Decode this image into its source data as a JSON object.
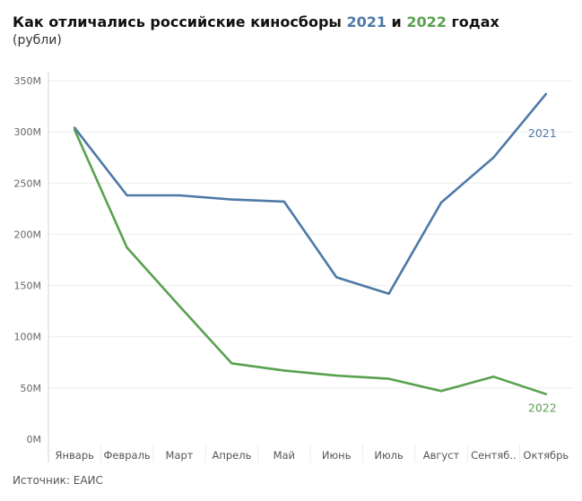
{
  "title": {
    "prefix": "Как отличались российские киносборы ",
    "year1": "2021",
    "middle": " и ",
    "year2": "2022",
    "suffix": " годах"
  },
  "subtitle": "(рубли)",
  "source": "Источник: ЕАИС",
  "colors": {
    "y2021": "#4e79a7",
    "y2022": "#59a14f"
  },
  "chart_data": {
    "type": "line",
    "categories": [
      "Январь",
      "Февраль",
      "Март",
      "Апрель",
      "Май",
      "Июнь",
      "Июль",
      "Август",
      "Сентяб..",
      "Октябрь"
    ],
    "y_ticks": [
      "0M",
      "50M",
      "100M",
      "150M",
      "200M",
      "250M",
      "300M",
      "350M"
    ],
    "ylim": [
      0,
      350000000
    ],
    "grid": true,
    "series": [
      {
        "name": "2021",
        "values": [
          304000000,
          238000000,
          238000000,
          234000000,
          232000000,
          158000000,
          142000000,
          231000000,
          275000000,
          337000000
        ]
      },
      {
        "name": "2022",
        "values": [
          302000000,
          187000000,
          130000000,
          74000000,
          67000000,
          62000000,
          59000000,
          47000000,
          61000000,
          44000000
        ]
      }
    ]
  }
}
